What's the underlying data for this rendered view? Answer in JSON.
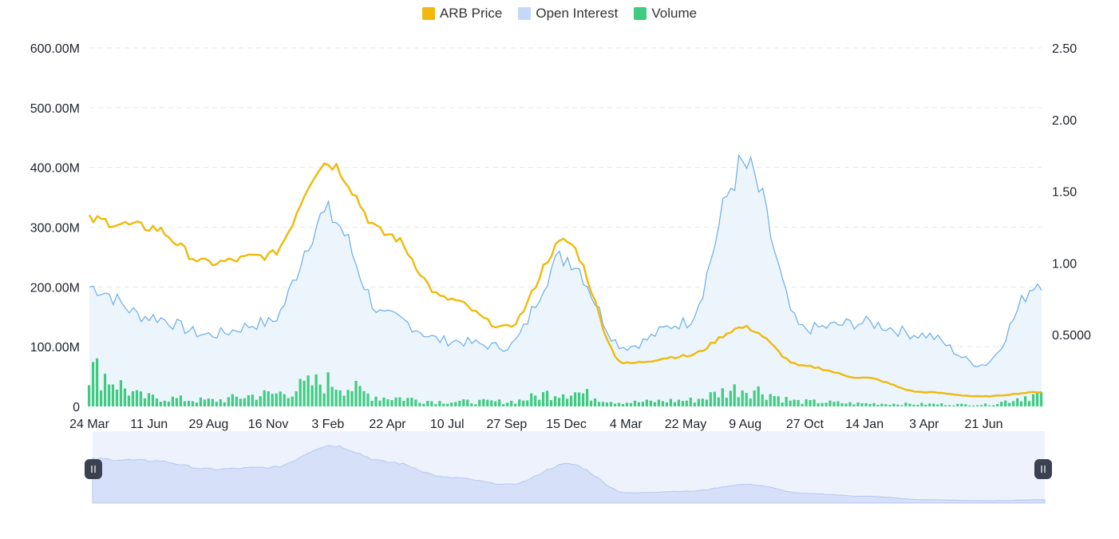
{
  "legend": [
    {
      "name": "ARB Price",
      "color": "#f0b90b"
    },
    {
      "name": "Open Interest",
      "color": "#c6d8f8"
    },
    {
      "name": "Volume",
      "color": "#3fcc80"
    }
  ],
  "chart_data": {
    "type": "line",
    "left_axis": {
      "range": [
        0,
        600000000
      ],
      "ticks": [
        "0",
        "100.00M",
        "200.00M",
        "300.00M",
        "400.00M",
        "500.00M",
        "600.00M"
      ],
      "grid": true
    },
    "right_axis": {
      "range": [
        0,
        2.5
      ],
      "ticks": [
        "0.5000",
        "1.00",
        "1.50",
        "2.00",
        "2.50"
      ]
    },
    "x_tick_labels": [
      "24 Mar",
      "11 Jun",
      "29 Aug",
      "16 Nov",
      "3 Feb",
      "22 Apr",
      "10 Jul",
      "27 Sep",
      "15 Dec",
      "4 Mar",
      "22 May",
      "9 Aug",
      "27 Oct",
      "14 Jan",
      "3 Apr",
      "21 Jun"
    ],
    "series": [
      {
        "name": "ARB Price",
        "axis": "right",
        "color": "#f0b90b",
        "x": [
          "24 Mar",
          "11 Jun",
          "29 Aug",
          "16 Nov",
          "3 Feb",
          "22 Apr",
          "10 Jul",
          "27 Sep",
          "15 Dec",
          "4 Mar",
          "22 May",
          "9 Aug",
          "27 Oct",
          "14 Jan",
          "3 Apr",
          "21 Jun",
          "end"
        ],
        "values": [
          1.3,
          1.25,
          1.0,
          1.05,
          1.7,
          1.2,
          0.75,
          0.55,
          1.15,
          0.3,
          0.35,
          0.55,
          0.28,
          0.2,
          0.1,
          0.07,
          0.1
        ]
      },
      {
        "name": "Open Interest",
        "axis": "left",
        "color": "#6aaee8",
        "x": [
          "24 Mar",
          "11 Jun",
          "29 Aug",
          "16 Nov",
          "3 Feb",
          "22 Apr",
          "10 Jul",
          "27 Sep",
          "15 Dec",
          "4 Mar",
          "22 May",
          "9 Aug",
          "27 Oct",
          "14 Jan",
          "3 Apr",
          "21 Jun",
          "end"
        ],
        "values": [
          200000000,
          150000000,
          120000000,
          140000000,
          320000000,
          150000000,
          110000000,
          100000000,
          250000000,
          100000000,
          140000000,
          400000000,
          130000000,
          140000000,
          120000000,
          70000000,
          210000000
        ]
      },
      {
        "name": "Volume",
        "axis": "left",
        "color": "#3fcc80",
        "x": [
          "24 Mar",
          "11 Jun",
          "29 Aug",
          "16 Nov",
          "3 Feb",
          "22 Apr",
          "10 Jul",
          "27 Sep",
          "15 Dec",
          "4 Mar",
          "22 May",
          "9 Aug",
          "27 Oct",
          "14 Jan",
          "3 Apr",
          "21 Jun",
          "end"
        ],
        "values": [
          60000000,
          15000000,
          10000000,
          20000000,
          40000000,
          15000000,
          8000000,
          8000000,
          25000000,
          7000000,
          10000000,
          30000000,
          8000000,
          5000000,
          4000000,
          3000000,
          20000000
        ]
      }
    ],
    "navigator": {
      "series": "ARB Price",
      "range_start": "24 Mar",
      "range_end": "end",
      "color": "#b7c8f0"
    }
  }
}
